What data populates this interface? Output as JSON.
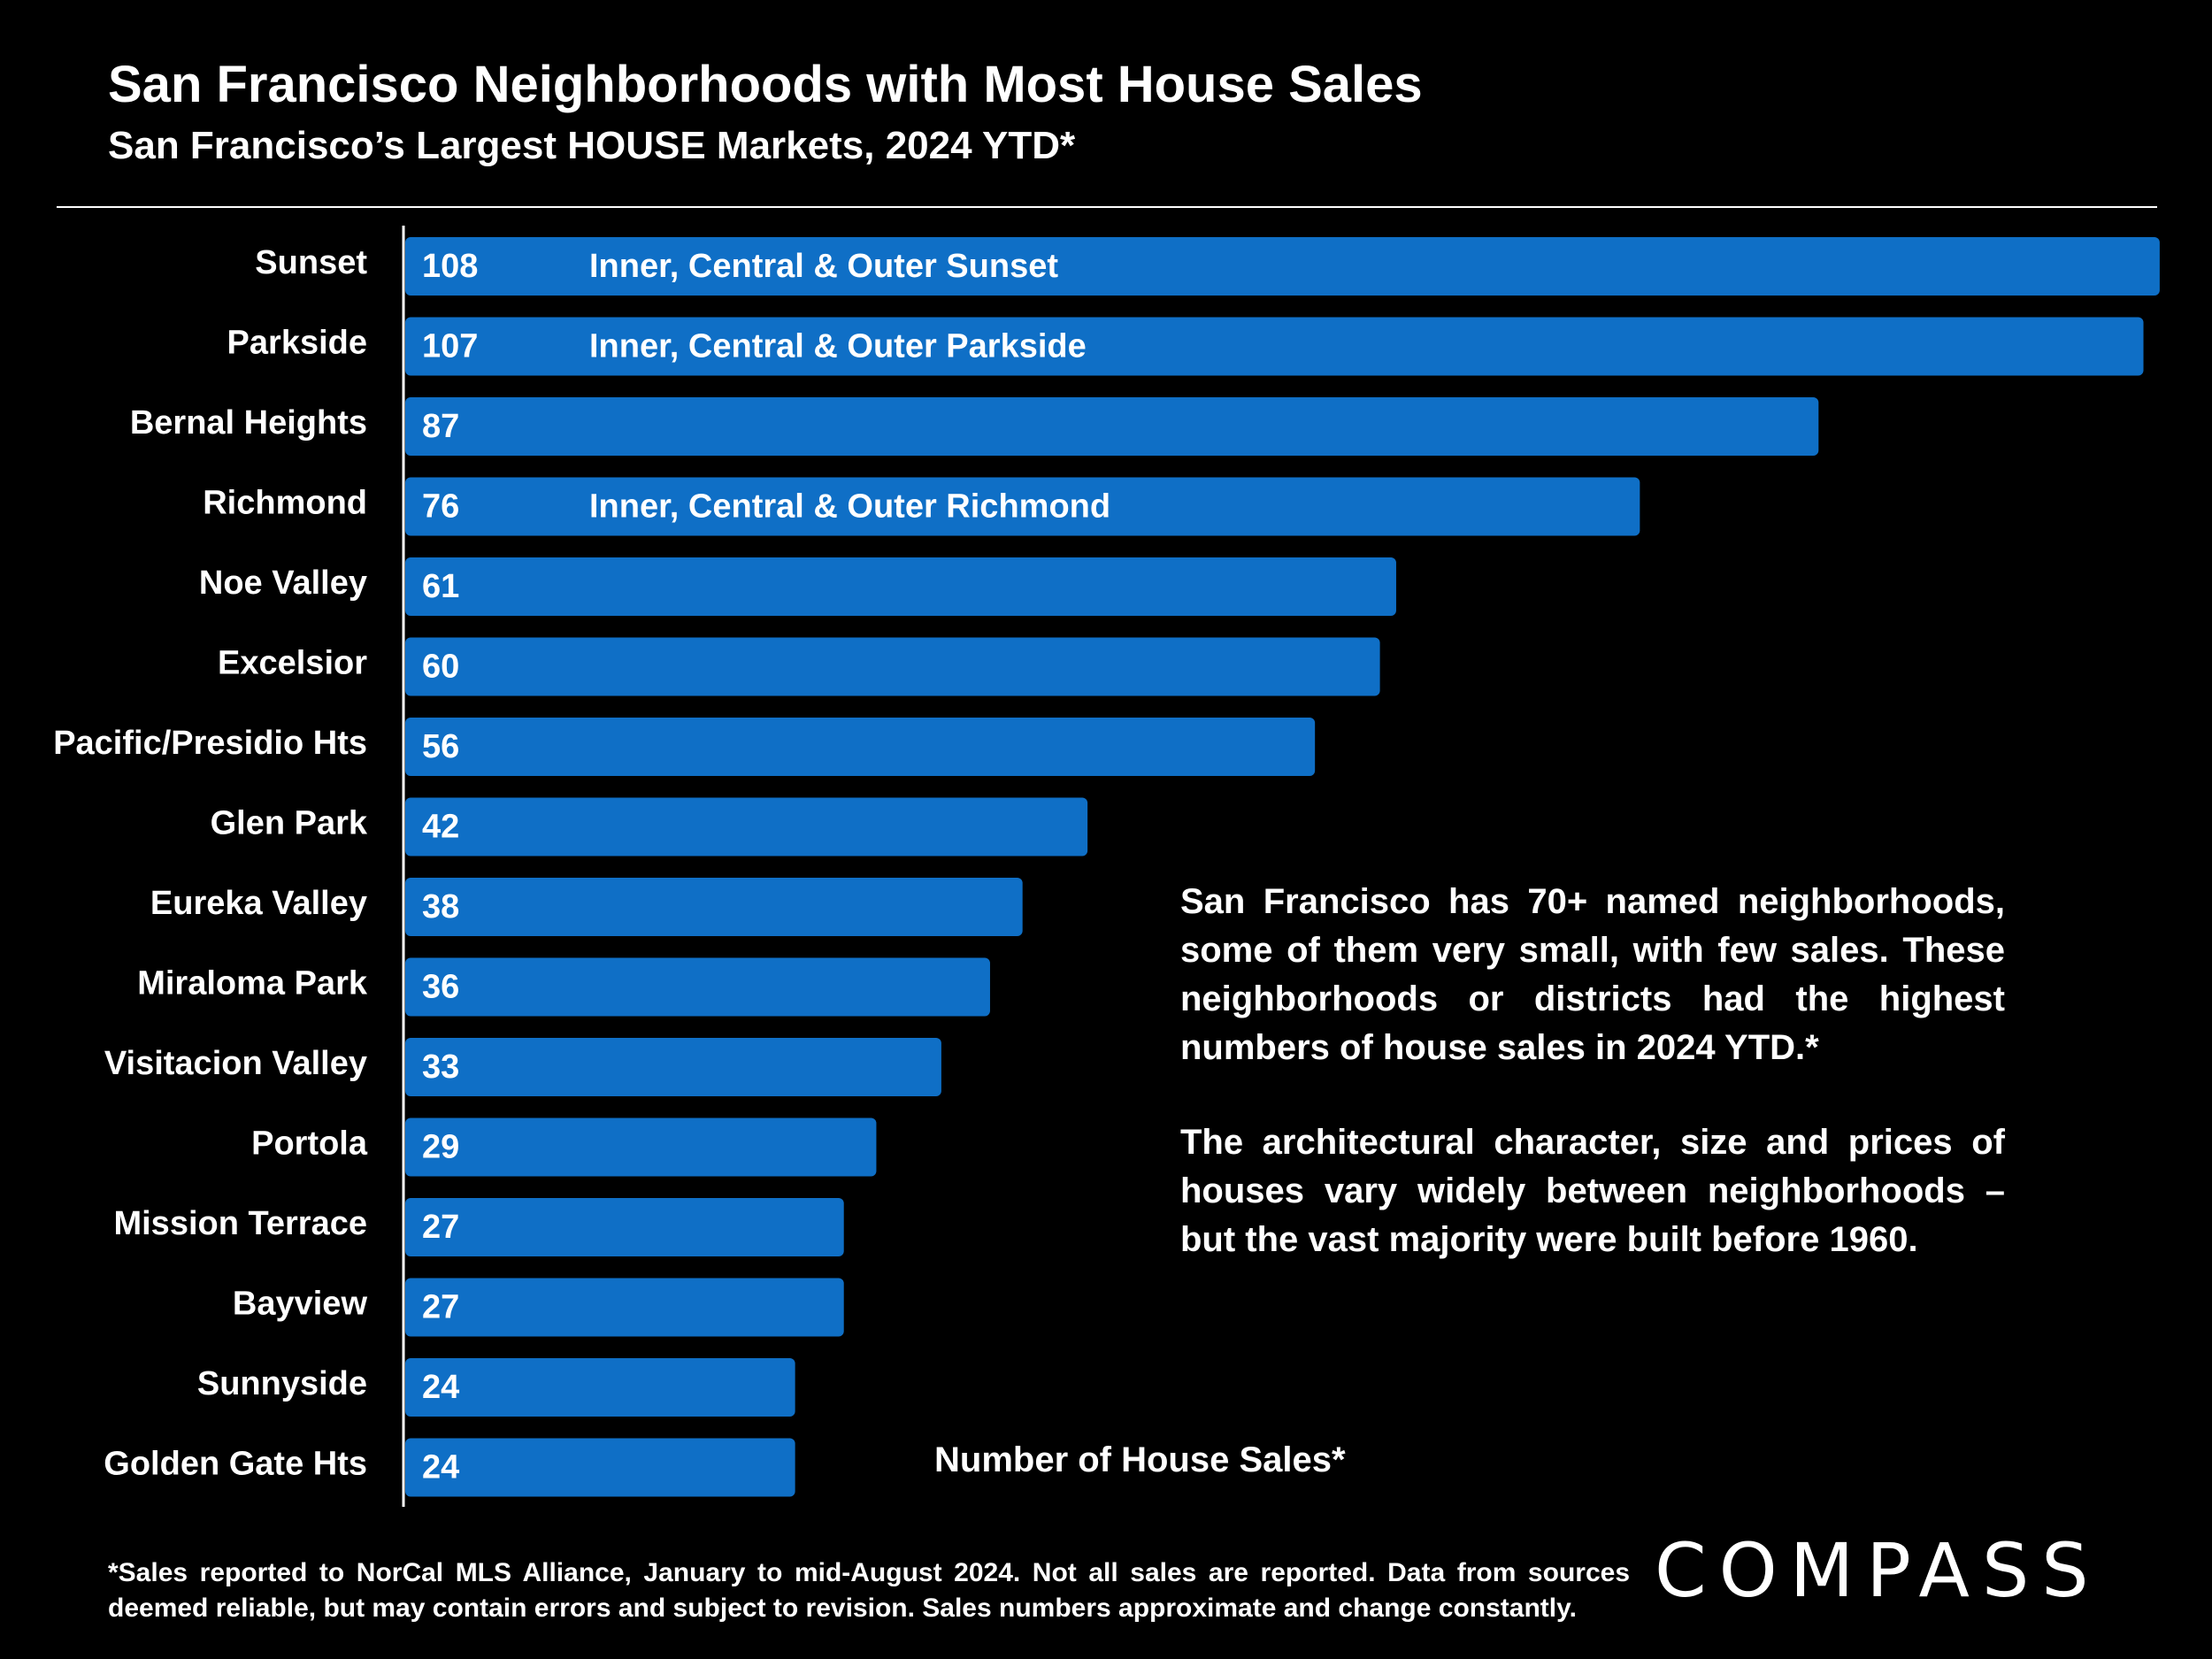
{
  "header": {
    "title": "San Francisco Neighborhoods with Most House Sales",
    "subtitle": "San Francisco’s Largest HOUSE Markets, 2024 YTD*"
  },
  "chart_data": {
    "type": "bar",
    "orientation": "horizontal",
    "title": "San Francisco Neighborhoods with Most House Sales",
    "xlabel": "Number of House Sales*",
    "ylabel": "",
    "xlim": [
      0,
      108
    ],
    "grid": false,
    "bar_color": "#0F6FC6",
    "categories": [
      "Sunset",
      "Parkside",
      "Bernal Heights",
      "Richmond",
      "Noe Valley",
      "Excelsior",
      "Pacific/Presidio Hts",
      "Glen Park",
      "Eureka Valley",
      "Miraloma Park",
      "Visitacion Valley",
      "Portola",
      "Mission Terrace",
      "Bayview",
      "Sunnyside",
      "Golden Gate Hts"
    ],
    "values": [
      108,
      107,
      87,
      76,
      61,
      60,
      56,
      42,
      38,
      36,
      33,
      29,
      27,
      27,
      24,
      24
    ],
    "annotations": [
      {
        "category": "Sunset",
        "text": "Inner, Central & Outer Sunset"
      },
      {
        "category": "Parkside",
        "text": "Inner, Central & Outer Parkside"
      },
      {
        "category": "Richmond",
        "text": "Inner, Central & Outer Richmond"
      }
    ]
  },
  "note": {
    "p1": "San Francisco has 70+ named neighborhoods, some of them very small, with few sales. These neighborhoods or districts had the highest numbers of house sales in 2024 YTD.*",
    "p2": "The architectural character, size and prices of houses vary widely between neighborhoods – but the vast majority were built before 1960."
  },
  "footnote": "*Sales reported to NorCal MLS Alliance, January to mid-August 2024. Not all sales are reported. Data from sources deemed reliable, but may contain errors and subject to revision. Sales numbers approximate and change constantly.",
  "brand": {
    "logo_text": "COMPASS"
  }
}
